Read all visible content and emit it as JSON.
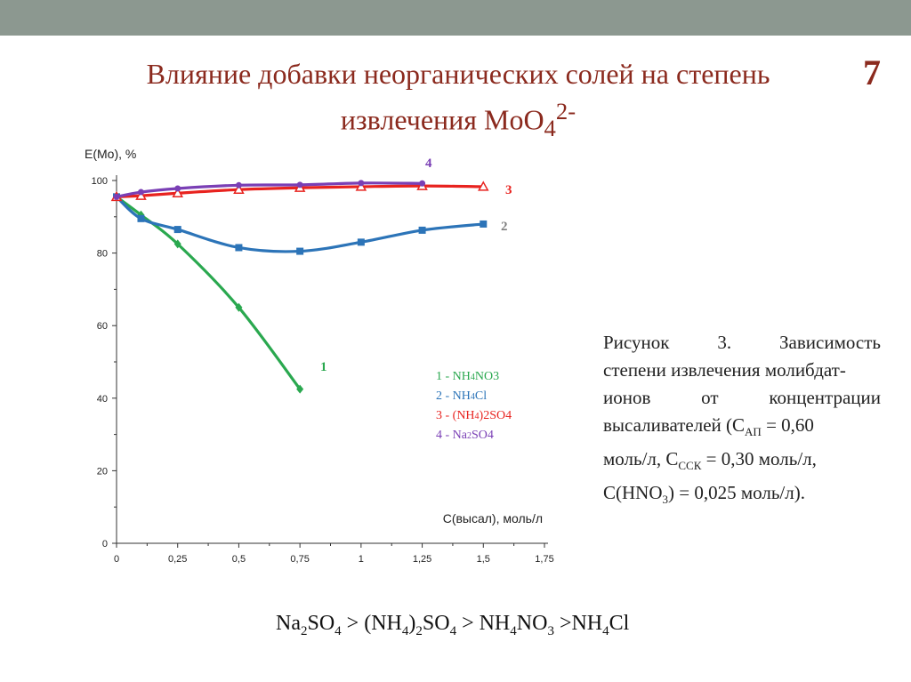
{
  "slide": {
    "title_line1": "Влияние добавки неорганических солей на степень",
    "title_line2_prefix": "извлечения MoO",
    "title_line2_sub": "4",
    "title_line2_sup": "2-",
    "slide_number": "7"
  },
  "caption": {
    "w_risunok": "Рисунок",
    "w_num": "3.",
    "w_zav": "Зависимость",
    "line2": "степени извлечения молибдат-",
    "w_ionov": "ионов",
    "w_ot": "от",
    "w_konc": "концентрации",
    "line4a": "высаливателей (C",
    "sub_ap": "АП",
    "line4b": " = 0,60",
    "line5a": "моль/л, C",
    "sub_ssk": "ССК",
    "line5b": " = 0,30 моль/л,",
    "line6a": "C(HNO",
    "sub_3": "3",
    "line6b": ") = 0,025 моль/л)."
  },
  "formula": {
    "p1": "Na",
    "s1": "2",
    "p2": "SO",
    "s2": "4",
    "p3": " > (NH",
    "s3": "4",
    "p4": ")",
    "s4": "2",
    "p5": "SO",
    "s5": "4",
    "p6": " > NH",
    "s6": "4",
    "p7": "NO",
    "s7": "3",
    "p8": " >NH",
    "s8": "4",
    "p9": "Cl"
  },
  "chart_data": {
    "type": "line",
    "ylabel": "E(Mo), %",
    "xlabel": "C(высал), моль/л",
    "xlim": [
      0,
      1.75
    ],
    "ylim": [
      0,
      100
    ],
    "x_ticks": [
      "0",
      "0,25",
      "0,5",
      "0,75",
      "1",
      "1,25",
      "1,5",
      "1,75"
    ],
    "y_ticks": [
      "0",
      "20",
      "40",
      "60",
      "80",
      "100"
    ],
    "grid": false,
    "legend_position": "right",
    "series": [
      {
        "name": "1 - NH4NO3",
        "label": "1",
        "color": "#2aa84f",
        "marker": "diamond",
        "legend_prefix": "1 - NH",
        "legend_sub": "4",
        "legend_suffix": "NO3",
        "x": [
          0,
          0.1,
          0.25,
          0.5,
          0.75
        ],
        "y": [
          95.5,
          90.5,
          82.5,
          65,
          42.5
        ]
      },
      {
        "name": "2 - NH4Cl",
        "label": "2",
        "color": "#2c74b8",
        "marker": "square",
        "legend_prefix": "2 - NH",
        "legend_sub": "4",
        "legend_suffix": "Cl",
        "x": [
          0,
          0.1,
          0.25,
          0.5,
          0.75,
          1.0,
          1.25,
          1.5
        ],
        "y": [
          95.5,
          89.5,
          86.5,
          81.5,
          80.5,
          83,
          86.3,
          88
        ]
      },
      {
        "name": "3 - (NH4)2SO4",
        "label": "3",
        "color": "#e8231f",
        "marker": "triangle",
        "legend_prefix": "3 - (NH",
        "legend_sub": "4",
        "legend_suffix": ")2SO4",
        "x": [
          0,
          0.1,
          0.25,
          0.5,
          0.75,
          1.0,
          1.25,
          1.5
        ],
        "y": [
          95.5,
          95.8,
          96.5,
          97.5,
          98,
          98.3,
          98.5,
          98.3
        ]
      },
      {
        "name": "4 - Na2SO4",
        "label": "4",
        "color": "#7a3fb5",
        "marker": "circle",
        "legend_prefix": "4 - Na",
        "legend_sub": "2",
        "legend_suffix": "SO4",
        "x": [
          0,
          0.1,
          0.25,
          0.5,
          0.75,
          1.0,
          1.25
        ],
        "y": [
          95.5,
          96.8,
          97.8,
          98.7,
          98.8,
          99.3,
          99.2
        ]
      }
    ]
  }
}
